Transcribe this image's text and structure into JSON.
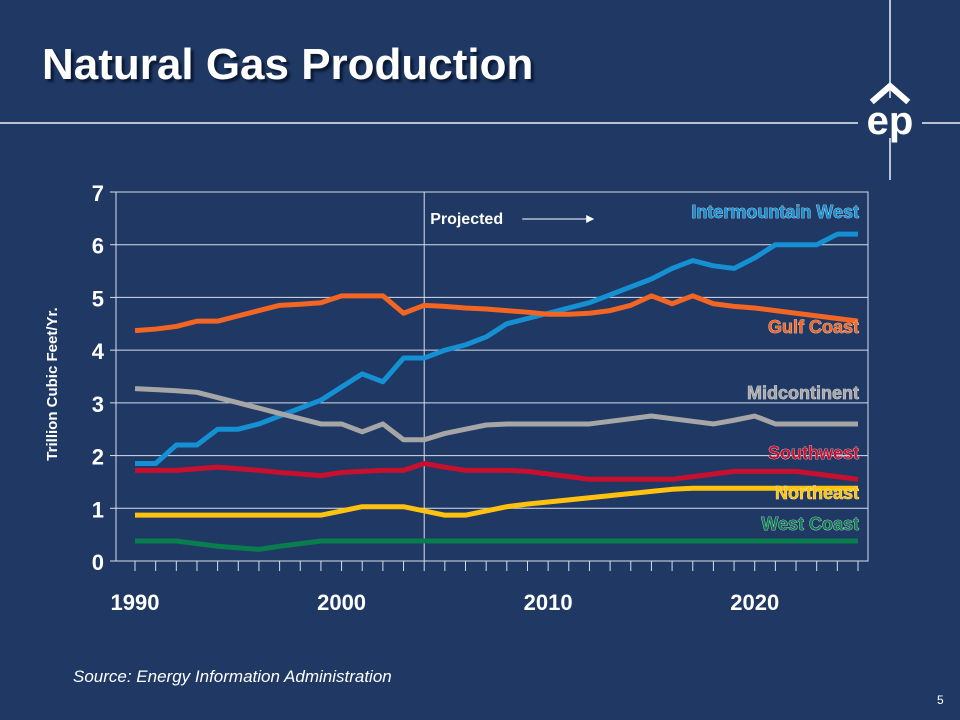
{
  "slide": {
    "title": "Natural Gas Production",
    "source": "Source: Energy Information Administration",
    "page_number": "5",
    "logo_text": "ep"
  },
  "chart_data": {
    "type": "line",
    "title": "",
    "ylabel": "Trillion Cubic Feet/Yr.",
    "xlabel": "",
    "xlim": [
      1990,
      2025
    ],
    "ylim": [
      0,
      7
    ],
    "x_ticks": [
      1990,
      2000,
      2010,
      2020
    ],
    "y_ticks": [
      0,
      1,
      2,
      3,
      4,
      5,
      6,
      7
    ],
    "grid": true,
    "projected_start_year": 2004,
    "projected_label": "Projected",
    "x": [
      1990,
      1991,
      1992,
      1993,
      1994,
      1995,
      1996,
      1997,
      1998,
      1999,
      2000,
      2001,
      2002,
      2003,
      2004,
      2005,
      2006,
      2007,
      2008,
      2009,
      2010,
      2011,
      2012,
      2013,
      2014,
      2015,
      2016,
      2017,
      2018,
      2019,
      2020,
      2021,
      2022,
      2023,
      2024,
      2025
    ],
    "series": [
      {
        "name": "Intermountain West",
        "color": "#1590d2",
        "values": [
          1.85,
          1.85,
          2.2,
          2.2,
          2.5,
          2.5,
          2.6,
          2.75,
          2.9,
          3.05,
          3.3,
          3.55,
          3.4,
          3.85,
          3.85,
          4.0,
          4.1,
          4.25,
          4.5,
          4.6,
          4.7,
          4.8,
          4.9,
          5.05,
          5.2,
          5.35,
          5.55,
          5.7,
          5.6,
          5.55,
          5.75,
          6.0,
          6.0,
          6.0,
          6.2,
          6.2
        ]
      },
      {
        "name": "Gulf Coast",
        "color": "#f26522",
        "values": [
          4.37,
          4.4,
          4.45,
          4.55,
          4.55,
          4.65,
          4.75,
          4.85,
          4.87,
          4.9,
          5.03,
          5.03,
          5.03,
          4.7,
          4.85,
          4.83,
          4.8,
          4.78,
          4.75,
          4.72,
          4.68,
          4.68,
          4.7,
          4.75,
          4.85,
          5.03,
          4.88,
          5.03,
          4.88,
          4.83,
          4.8,
          4.75,
          4.7,
          4.65,
          4.6,
          4.55
        ]
      },
      {
        "name": "Midcontinent",
        "color": "#a6a6a6",
        "values": [
          3.27,
          3.25,
          3.23,
          3.2,
          3.1,
          3.0,
          2.9,
          2.8,
          2.7,
          2.6,
          2.6,
          2.45,
          2.6,
          2.3,
          2.3,
          2.42,
          2.5,
          2.58,
          2.6,
          2.6,
          2.6,
          2.6,
          2.6,
          2.65,
          2.7,
          2.75,
          2.7,
          2.65,
          2.6,
          2.67,
          2.75,
          2.6,
          2.6,
          2.6,
          2.6,
          2.6
        ]
      },
      {
        "name": "Southwest",
        "color": "#c8102e",
        "values": [
          1.72,
          1.72,
          1.72,
          1.75,
          1.78,
          1.75,
          1.72,
          1.68,
          1.65,
          1.62,
          1.68,
          1.7,
          1.72,
          1.72,
          1.85,
          1.78,
          1.72,
          1.72,
          1.72,
          1.7,
          1.65,
          1.6,
          1.55,
          1.55,
          1.55,
          1.55,
          1.55,
          1.6,
          1.65,
          1.7,
          1.7,
          1.7,
          1.7,
          1.65,
          1.6,
          1.55
        ]
      },
      {
        "name": "Northeast",
        "color": "#ffc20e",
        "values": [
          0.87,
          0.87,
          0.87,
          0.87,
          0.87,
          0.87,
          0.87,
          0.87,
          0.87,
          0.87,
          0.95,
          1.03,
          1.03,
          1.03,
          0.95,
          0.87,
          0.87,
          0.95,
          1.03,
          1.08,
          1.12,
          1.16,
          1.2,
          1.24,
          1.28,
          1.32,
          1.36,
          1.38,
          1.38,
          1.38,
          1.38,
          1.38,
          1.38,
          1.38,
          1.38,
          1.38
        ]
      },
      {
        "name": "West Coast",
        "color": "#0a7d4e",
        "values": [
          0.38,
          0.38,
          0.38,
          0.33,
          0.28,
          0.25,
          0.22,
          0.28,
          0.33,
          0.38,
          0.38,
          0.38,
          0.38,
          0.38,
          0.38,
          0.38,
          0.38,
          0.38,
          0.38,
          0.38,
          0.38,
          0.38,
          0.38,
          0.38,
          0.38,
          0.38,
          0.38,
          0.38,
          0.38,
          0.38,
          0.38,
          0.38,
          0.38,
          0.38,
          0.38,
          0.38
        ]
      }
    ]
  }
}
